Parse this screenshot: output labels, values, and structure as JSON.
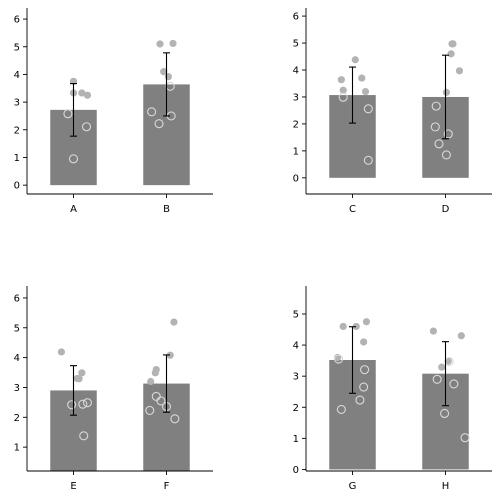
{
  "chart_data": [
    {
      "type": "bar",
      "panel": "top-left",
      "categories": [
        "A",
        "B"
      ],
      "values": [
        2.72,
        3.64
      ],
      "errors": [
        0.95,
        1.14
      ],
      "ylim": [
        -0.32,
        6.4
      ],
      "yticks": [
        0,
        1,
        2,
        3,
        4,
        5,
        6
      ],
      "points": [
        {
          "cat": 0,
          "y": 3.75,
          "dx": 0.0,
          "style": "filled"
        },
        {
          "cat": 0,
          "y": 3.33,
          "dx": 0.0,
          "style": "filled"
        },
        {
          "cat": 0,
          "y": 3.33,
          "dx": 0.09,
          "style": "filled"
        },
        {
          "cat": 0,
          "y": 3.25,
          "dx": 0.15,
          "style": "filled"
        },
        {
          "cat": 0,
          "y": 2.58,
          "dx": -0.06,
          "style": "open"
        },
        {
          "cat": 0,
          "y": 2.11,
          "dx": 0.14,
          "style": "open"
        },
        {
          "cat": 0,
          "y": 0.95,
          "dx": 0.0,
          "style": "open"
        },
        {
          "cat": 1,
          "y": 5.1,
          "dx": -0.07,
          "style": "filled"
        },
        {
          "cat": 1,
          "y": 5.12,
          "dx": 0.07,
          "style": "filled"
        },
        {
          "cat": 1,
          "y": 4.1,
          "dx": -0.03,
          "style": "filled"
        },
        {
          "cat": 1,
          "y": 3.92,
          "dx": 0.02,
          "style": "filled"
        },
        {
          "cat": 1,
          "y": 3.57,
          "dx": 0.04,
          "style": "open"
        },
        {
          "cat": 1,
          "y": 2.65,
          "dx": -0.16,
          "style": "open"
        },
        {
          "cat": 1,
          "y": 2.5,
          "dx": 0.05,
          "style": "open"
        },
        {
          "cat": 1,
          "y": 2.22,
          "dx": -0.08,
          "style": "open"
        }
      ]
    },
    {
      "type": "bar",
      "panel": "top-right",
      "categories": [
        "C",
        "D"
      ],
      "values": [
        3.07,
        3.0
      ],
      "errors": [
        1.04,
        1.55
      ],
      "ylim": [
        -0.6,
        6.3
      ],
      "yticks": [
        0,
        1,
        2,
        3,
        4,
        5,
        6
      ],
      "points": [
        {
          "cat": 0,
          "y": 4.38,
          "dx": 0.03,
          "style": "filled"
        },
        {
          "cat": 0,
          "y": 3.7,
          "dx": 0.1,
          "style": "filled"
        },
        {
          "cat": 0,
          "y": 3.64,
          "dx": -0.12,
          "style": "filled"
        },
        {
          "cat": 0,
          "y": 3.25,
          "dx": -0.1,
          "style": "filled"
        },
        {
          "cat": 0,
          "y": 3.2,
          "dx": 0.14,
          "style": "filled"
        },
        {
          "cat": 0,
          "y": 2.99,
          "dx": -0.1,
          "style": "open"
        },
        {
          "cat": 0,
          "y": 2.56,
          "dx": 0.17,
          "style": "open"
        },
        {
          "cat": 0,
          "y": 0.65,
          "dx": 0.17,
          "style": "open"
        },
        {
          "cat": 1,
          "y": 4.97,
          "dx": 0.07,
          "style": "filled"
        },
        {
          "cat": 1,
          "y": 4.97,
          "dx": 0.08,
          "style": "filled"
        },
        {
          "cat": 1,
          "y": 4.6,
          "dx": 0.06,
          "style": "filled"
        },
        {
          "cat": 1,
          "y": 3.97,
          "dx": 0.15,
          "style": "filled"
        },
        {
          "cat": 1,
          "y": 3.17,
          "dx": 0.01,
          "style": "filled"
        },
        {
          "cat": 1,
          "y": 2.66,
          "dx": -0.1,
          "style": "open"
        },
        {
          "cat": 1,
          "y": 1.89,
          "dx": -0.11,
          "style": "open"
        },
        {
          "cat": 1,
          "y": 1.63,
          "dx": 0.03,
          "style": "open"
        },
        {
          "cat": 1,
          "y": 1.26,
          "dx": -0.07,
          "style": "open"
        },
        {
          "cat": 1,
          "y": 0.85,
          "dx": 0.01,
          "style": "open"
        }
      ]
    },
    {
      "type": "bar",
      "panel": "bottom-left",
      "categories": [
        "E",
        "F"
      ],
      "values": [
        2.9,
        3.13
      ],
      "errors": [
        0.83,
        0.96
      ],
      "ylim": [
        0.2,
        6.4
      ],
      "yticks": [
        1,
        2,
        3,
        4,
        5,
        6
      ],
      "points": [
        {
          "cat": 0,
          "y": 4.19,
          "dx": -0.13,
          "style": "filled"
        },
        {
          "cat": 0,
          "y": 3.49,
          "dx": 0.09,
          "style": "filled"
        },
        {
          "cat": 0,
          "y": 3.3,
          "dx": 0.04,
          "style": "filled"
        },
        {
          "cat": 0,
          "y": 3.29,
          "dx": 0.06,
          "style": "filled"
        },
        {
          "cat": 0,
          "y": 2.49,
          "dx": 0.15,
          "style": "open"
        },
        {
          "cat": 0,
          "y": 2.44,
          "dx": 0.1,
          "style": "open"
        },
        {
          "cat": 0,
          "y": 2.42,
          "dx": -0.02,
          "style": "open"
        },
        {
          "cat": 0,
          "y": 1.38,
          "dx": 0.11,
          "style": "open"
        },
        {
          "cat": 1,
          "y": 5.19,
          "dx": 0.08,
          "style": "filled"
        },
        {
          "cat": 1,
          "y": 4.08,
          "dx": 0.04,
          "style": "filled"
        },
        {
          "cat": 1,
          "y": 3.6,
          "dx": -0.11,
          "style": "filled"
        },
        {
          "cat": 1,
          "y": 3.49,
          "dx": -0.12,
          "style": "filled"
        },
        {
          "cat": 1,
          "y": 3.2,
          "dx": -0.17,
          "style": "filled"
        },
        {
          "cat": 1,
          "y": 2.7,
          "dx": -0.11,
          "style": "open"
        },
        {
          "cat": 1,
          "y": 2.55,
          "dx": -0.06,
          "style": "open"
        },
        {
          "cat": 1,
          "y": 2.36,
          "dx": 0.0,
          "style": "open"
        },
        {
          "cat": 1,
          "y": 2.23,
          "dx": -0.18,
          "style": "open"
        },
        {
          "cat": 1,
          "y": 1.95,
          "dx": 0.09,
          "style": "open"
        }
      ]
    },
    {
      "type": "bar",
      "panel": "bottom-right",
      "categories": [
        "G",
        "H"
      ],
      "values": [
        3.52,
        3.08
      ],
      "errors": [
        1.07,
        1.03
      ],
      "ylim": [
        -0.05,
        5.9
      ],
      "yticks": [
        0,
        1,
        2,
        3,
        4,
        5
      ],
      "points": [
        {
          "cat": 0,
          "y": 4.75,
          "dx": 0.15,
          "style": "filled"
        },
        {
          "cat": 0,
          "y": 4.6,
          "dx": -0.1,
          "style": "filled"
        },
        {
          "cat": 0,
          "y": 4.6,
          "dx": 0.04,
          "style": "filled"
        },
        {
          "cat": 0,
          "y": 4.1,
          "dx": 0.12,
          "style": "filled"
        },
        {
          "cat": 0,
          "y": 3.6,
          "dx": -0.16,
          "style": "filled"
        },
        {
          "cat": 0,
          "y": 3.21,
          "dx": 0.13,
          "style": "open"
        },
        {
          "cat": 0,
          "y": 2.65,
          "dx": 0.12,
          "style": "open"
        },
        {
          "cat": 0,
          "y": 2.23,
          "dx": 0.08,
          "style": "open"
        },
        {
          "cat": 0,
          "y": 1.93,
          "dx": -0.12,
          "style": "open"
        },
        {
          "cat": 0,
          "y": 3.55,
          "dx": -0.15,
          "style": "open"
        },
        {
          "cat": 1,
          "y": 4.45,
          "dx": -0.13,
          "style": "filled"
        },
        {
          "cat": 1,
          "y": 4.3,
          "dx": 0.17,
          "style": "filled"
        },
        {
          "cat": 1,
          "y": 3.48,
          "dx": 0.03,
          "style": "filled"
        },
        {
          "cat": 1,
          "y": 3.29,
          "dx": -0.04,
          "style": "filled"
        },
        {
          "cat": 1,
          "y": 2.75,
          "dx": 0.09,
          "style": "open"
        },
        {
          "cat": 1,
          "y": 2.9,
          "dx": -0.09,
          "style": "open"
        },
        {
          "cat": 1,
          "y": 3.47,
          "dx": 0.04,
          "style": "open"
        },
        {
          "cat": 1,
          "y": 1.8,
          "dx": -0.01,
          "style": "open"
        },
        {
          "cat": 1,
          "y": 1.02,
          "dx": 0.21,
          "style": "open"
        }
      ]
    }
  ],
  "colors": {
    "bar": "#808080",
    "errorbar": "#000000",
    "point_filled": "#b3b3b3",
    "point_open_stroke": "#d9d9d9"
  }
}
